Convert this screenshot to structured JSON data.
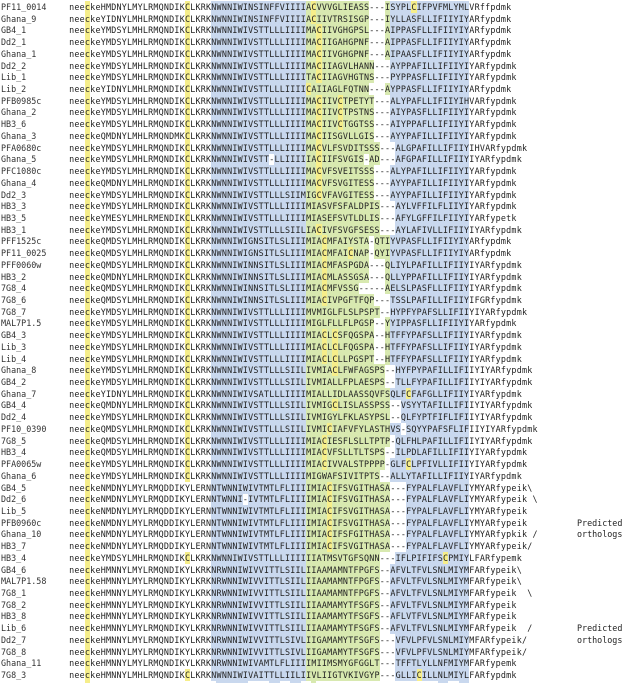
{
  "rows": [
    {
      "name": "PF11_0014",
      "seq": "neeckeHMDNYLMYLRMQNDIKCLKRKNWNNIWINSINFFVIIIIACVVVGLIEASS---ISYPLCIFPVFMLYMLVRffpdmk"
    },
    {
      "name": "Ghana_9",
      "seq": "neeckeYIDNYLMHLRMQNDIKCLKRKNWNNIWINSINFFVIIIIACIIVTRSISGP---IYLLASFLLIFIIYIYARfypdmk"
    },
    {
      "name": "GB4_1",
      "seq": "neeckeYMDSYLMHLRMQNDIKCLKRKNWNNIWIVSTTLLLIIIIMACIIVGHGPSL---AIPPASFLLIFIIYIYARfypdmk"
    },
    {
      "name": "Dd2_1",
      "seq": "neeckeYMDSYLMHLRMQNDIKCLKRKNWNNIWIVSTTLLLIIIIMACIIGAHGPNF---AIPPASFLLIFIIYIYARfypdmk"
    },
    {
      "name": "Ghana_1",
      "seq": "neeckeYMDSYLMHLRMQNDIKCLKRKNWNNIWIVSTTLLLIIIIMACIIVGHGPNF---AIPAASFLLIFIIYIYARfypdmk"
    },
    {
      "name": "Dd2_2",
      "seq": "neeckeYMDSYLMHLRMQNDIKCLKRKNWNNIWIVSTTLLLIIIIMACIIAGVLHANN---AYPPAFILLIFIIYIYARfypdmk"
    },
    {
      "name": "Lib_1",
      "seq": "neeckeYMDSYLMHLRMQNDIKCLKRKNWNNIWIVSTTLLLIIIITACIIAGVHGTNS---PYPPASFLLIFIIYIYARfypdmk"
    },
    {
      "name": "Lib_2",
      "seq": "neeckeYIDNYLMHLRMQNDIKCLKRKNWNNIWIVSTTLLLIIIICAIIAGLFQTNN---AYPPASFLLIFIIYIYARfypdmk"
    },
    {
      "name": "PFB0985c",
      "seq": "neeckeYMDSYLMHLRMQNDIKCLKRKNWNNIWIVSTTLLLIIIIMACIIVCTPETYT---ALYPAFLLIFIIYIHVARfypdmk"
    },
    {
      "name": "Ghana_2",
      "seq": "neeckeYMDSYLMHLRMQNDIKCLKRKNWNNIWIVSTTLLLIIIIMACIIVCTPSTNS---AIYPASFLLIFIIYIYARfypdmk"
    },
    {
      "name": "HB3_6",
      "seq": "neeckeYMDSYLMHLRMQNDIKCLKRKNWNNIWIVSTTLLLIIIIMACIIVCTGGTSS---AIYPPAFLLIFIIYIYARfypdmk"
    },
    {
      "name": "Ghana_3",
      "seq": "neeckeQMDNYLMHLRMQNDMKCLKRKNWNNIWIVSTTLLLIIIIMACIISGVLLGIS---AYYPAFILLIFIIYIYARfypdmk"
    },
    {
      "name": "PFA0680c",
      "seq": "neeckeYMDSYLMHLRMQNDIKCLKRKNWNNIWIVSTTLLLIIIIMACVLFSVDITSSS---ALGPAFILLIFIIYIHVARfypdmk"
    },
    {
      "name": "Ghana_5",
      "seq": "neeckeYMDSYLMHLRMQNDIKCLKRKNWNNIWIVSTT-LLIIIIIACIIFSVGIS-AD---AFGPAFILLIFIIYIYARfypdmk"
    },
    {
      "name": "PFC1080c",
      "seq": "neeckeYMDSYLMHLRMQNDIKCLKRKNWNNIWIVSTTLLLIIIIMACVFSVEITSSS---ALYPAFILLIFIIYIYARfypdmk"
    },
    {
      "name": "Ghana_4",
      "seq": "neeckeQMDNYLMHLRMQNDIKCLKRKNWNNIWIVSTTLLLIIIIMACVFSVGITESS---AYYPAFILLIFIIYIYARfypdmk"
    },
    {
      "name": "Dd2_3",
      "seq": "neeckeYMDSYLMHLRMQNDIKCLKRKNWNNIWIVSTTLLLSIIMIGCVFAVGITESS---AYYPAFILLIFIIYIYARfypdmk"
    },
    {
      "name": "HB3_3",
      "seq": "neeckeYMDSYLMHLRMQNDIKCLKRKNWNNIWIVSTTLLLIIIIMIASVFSFALDPIS---AYLVFFILFLIIYIYARfypdmk"
    },
    {
      "name": "HB3_5",
      "seq": "neeckeYMESYLMHLRMENDIKCLKRKNWNNIWIVSTTLLLIIIIMIASEFSVTLDLIS---AFYLGFFILFIIYIYARfypetk"
    },
    {
      "name": "HB3_1",
      "seq": "neeckeYMDSYLMHLRMQNDIKCLKRKNWNNIWIVSTTLLLSIILIACIVFSVGFSESS---AYLAFIVLLIFIIYIYARfypdmk"
    },
    {
      "name": "PFF1525c",
      "seq": "neeckeQMDSYLMHLRMQNDIKCLKRKNWNNIWIGNSITLSLIIIMIACMFAIYSTA-QTIYVPASFLLIFIIYIYARfypdmk"
    },
    {
      "name": "PF11_0025",
      "seq": "neeckeQMDSYLMHLRMQNDIKCLKRKNWNNIWIGNSITLSLIIIMIACMFAICNAP-QYIYVPASFLLIFIIYIYARfypdmk"
    },
    {
      "name": "PFF0060w",
      "seq": "neeckeQMDSYLMHLRMQNDIKCLKRKNWNNIWINNSITLSLIIIMIACMFASPGDA---QLIYLPAFILLIFIIYIYARfypdmk"
    },
    {
      "name": "HB3_2",
      "seq": "neeckeQMDNYLMHLRMQNDIKCLKRKNWNNIWINNSITLSLIIIMIACMLASSGSA---QLLYPPAFILLIFIIYIYARfypdmk"
    },
    {
      "name": "7G8_4",
      "seq": "neeckeQMDSYLMHLRMQNDIKCLKRKNWNNIWINNSITLSLIIIMIACMFVSSG-----AELSLPASFLLIFIIYIYARfypdmk"
    },
    {
      "name": "7G8_6",
      "seq": "neeckeQMDSYLMHLRMQNDIKCLKRKNWNNIWINNSITLSLIIIMIACIVPGFTFQP---TSSLPAFILLIFIIYIFGRfypdmk"
    },
    {
      "name": "7G8_7",
      "seq": "neeckeYMDSYLMHLRMQNDIKCLKRKNWNNIWIVSTTLLLIIIIMVMIGLFLSLPSPT--HYPFYPAFSLLIFIIYIYARfypdmk"
    },
    {
      "name": "MAL7P1.5",
      "seq": "neeckeYMDSYLMHLRMQNDIKCLKRKNWNNIWIVSTTLLLIIIIMIGLFLLFLPGSP--YYIPPASFLLIFIIYIYARfypdmk"
    },
    {
      "name": "GB4_3",
      "seq": "neeckeYMDSYLMHLRMQNDIKCLKRKNWNNIWIVSTTLLLIIIIMIACLCSFQGSPA--HTFFYPAFSLLIFIIYIYARfypdmk"
    },
    {
      "name": "Lib_3",
      "seq": "neeckeYMDSYLMHLRMQNDIKCLKRKNWNNIWIVSTTLLLIIIIMIACLCLFQGSPA--HTFFYPAFSLLIFIIYIYARfypdmk"
    },
    {
      "name": "Lib_4",
      "seq": "neeckeYMDSYLMHLRMQNDIKCLKRKNWNNIWIVSTTLLLIIIIMIACLCLLPGSPT--HTFFYPAFSLLIFIIYIYARfypdmk"
    },
    {
      "name": "Ghana_8",
      "seq": "neeckeYMDSYLMHLRMQNDIKCLKRKNWNNIWIVSTTLLLSIILIVMIACLFWFAGSPS--HYFPYPAFILLIFIIYIYARfypdmk"
    },
    {
      "name": "GB4_2",
      "seq": "neeckeYMDSYLMHLRMQNDIKCLKRKNWNNIWIVSTTLLLSIILIVMIALLFPLAESPS--TLLFYPAFILLIFIIYIYARfypdmk"
    },
    {
      "name": "Ghana_7",
      "seq": "neeckeYIDNYLMHLRMQNDIKCLKRKNWNNIWIVSATLLLIIIIMIALLIDLAASSQVFSQLFCFAFGLLIFIIYIYARfypdmk"
    },
    {
      "name": "GB4_4",
      "seq": "neeckeQMDNYLMHLRMQNDIKCLKRKNWNNIWIVSTTLLLSIILIVMIGCLISLASSPSS--VSYYTAFILLIFIIYIYARfypdmk"
    },
    {
      "name": "Dd2_4",
      "seq": "neeckeYMDSYLMHLRMQNDIKCLKRKNWNNIWIVSTTLLLSIILIVMIGYLFKLASYPSL--QLFYPTFIFLIFIIYIYARfypdmk"
    },
    {
      "name": "PF10_0390",
      "seq": "neeckeQMDSYLMHLRMQNDIKCLKRKNWNNIWIVSTTLLLSIILIVMICIAFVFYLASTHVS-SQYYPAFSFLIFIIYIYARfypdmk"
    },
    {
      "name": "7G8_5",
      "seq": "neeckeQMDSYLMHLRMQNDIKCLKRKNWNNIWIVSTTLLLIIIIMIACIESFLSLLTPTP-QLFHLPAFILLIFIIYIYARfypdmk"
    },
    {
      "name": "HB3_4",
      "seq": "neeckeQMDSYLMHLRMQNDIKCLKRKNWNNIWIVSTTLLLIIIIMIACVFSLLTLTSPS--ILPDLAFILLIFIIYIYARfypdmk"
    },
    {
      "name": "PFA0065w",
      "seq": "neeckeYMDSYLMHLRMQNDIKCLKRKNWNNIWIVSTTLLLIIIIMIACIVVALSTPPPP-GLFCLPFIVLLIFIIYIYARfypdmk"
    },
    {
      "name": "Ghana_6",
      "seq": "neeckeYMDSYLMHLRMQNDIKCLKRKNWNNIWIVSTTLLLIIIIMIGWAFSIVITPTS--ALLYTAFILLIFIIYIYARfypdmk"
    },
    {
      "name": "GB4_5",
      "seq": "neeckeNMDNYLMYLRMQDDIKYLERNNTWNNIWIVTMTLFLIIIIMIACIFSVGITHASA---FYPALFLAVFLIYMYARfypeik\\"
    },
    {
      "name": "Dd2_6",
      "seq": "neeckeNMDNYLMYLRMQDDIKYLERNNTWNNI-IVTMTLFLIIIIMIACIFSVGITHASA---FYPALFLAVFLIYMYARfypeik \\"
    },
    {
      "name": "Lib_5",
      "seq": "neeckeNMDNYLMYLRMQDDIKYLERNNTWNNIWIVTMTLFLIIIIMIACIFSVGITHASA---FYPALFLAVFLIYMYARfypeik"
    },
    {
      "name": "PFB0960c",
      "seq": "neeckeNMDNYLMYLRMQDDIKYLERNNTWNNIWIVTMTLFLIIIIMIACIFSVGITHASA---FYPALFLAVFLIYMYARfypeik"
    },
    {
      "name": "Ghana_10",
      "seq": "neeckeNMDNYLMYLRMQDDIKYLERNNTWNNIWIVTMTLFLIIIIMIACIFSFGITHASA---FYPALFLAVFLIYMYARfypkik /"
    },
    {
      "name": "HB3_7",
      "seq": "neeckeNMDNYLMYLRMQDDIKYLERNNTWNNIWIVTMTLFLIIIIMIACIFSVGITHASA---FYPALFLAVFLIYMYARfypeik/"
    },
    {
      "name": "HB3_4",
      "seq": "neeckeYMDSYLMHLRMQNDIKCLKRKNWNNIWIVSTTLLLIIIIIIATMSVTGFSQNN---IFLPIFIFSCPMIYLFARfypemk"
    },
    {
      "name": "GB4_6",
      "seq": "neeckeHMNNYLMYLRMQNDIKYLKRKNRWNNIWIVVITTLSIILIIAAMAMNTFPGFS--AFVLTFVLSNLMIYMFARfypeik\\"
    },
    {
      "name": "MAL7P1.58",
      "seq": "neeckeHMNNYLMYLRMQNDIKYLKRKNRWNNIWIVVITTLSIILIIAAMAMNTFPGFS--AFVLTFVLSNLMIYMFARfypeik\\"
    },
    {
      "name": "7G8_1",
      "seq": "neeckeHMNNYLMYLRMQNDIKYLKRKNRWNNIWIVVITTLSIILIIAAMAMNTFPGFS--AFVLTFVLSNLMIYMFARfypeik  \\"
    },
    {
      "name": "7G8_2",
      "seq": "neeckeHMNNYLMYLRMQNDIKYLKRKNRWNNIWIVVITTLSIILIIAAMAMYTFSGFS--AFVLTFVLSNLMIYMFARfypeik"
    },
    {
      "name": "HB3_8",
      "seq": "neeckeHMNNYLMYLRMQNDIKYLKRKNRWNNIWIVVITTLSIILIIAAMAMYTFSGFS--AFLVTFVLSNLMIYMFARfypeik"
    },
    {
      "name": "Lib_6",
      "seq": "neeckeHMNNYLMYLRMQNDIKYLKRKNRWNNIWIVVITTLSIILIIAAMAMYTFSGFS--AFVLTFVLSNLMIYMFARfypeik  /"
    },
    {
      "name": "Dd2_7",
      "seq": "neeckeHMNNYLMYLRMQNDIKYLKRKNRWNNIWIVVITTLSIVLIIGAMAMYTFSGFS---VFVLPFVLSNLMIYMFARfypeik/"
    },
    {
      "name": "7G8_8",
      "seq": "neeckeHMNNYLMYLRMQNDIKYLKRKNRWNNIWIVVITTLSIVLIIGAMAMYTFSGFS---VFVLPFVLSNLMIYMFARfypeik/"
    },
    {
      "name": "Ghana_11",
      "seq": "neeckeHMNNYLMYLRMQNDIKYLKRKNRWNNIWIVAMTLFLIIIIMIIMSMYGFGGLT---TFFTLYLLNFMIYMFARfypemk"
    },
    {
      "name": "7G8_3",
      "seq": "neeckeHMNNYLMHLRMQNDIKCLKRKNWNNIWIVAITTLLIILIIVLIIGTVKIVGYP---GLLICILLNLMIYLFARfypdmk"
    },
    {
      "name": "cons/85%",
      "seq": "neeckeM..YLMHLRMQN.IK.LKRKN.WNNIWI....TL..II..I.......................IY..AR..P..K"
    }
  ],
  "annotations": [
    {
      "text": "Predicted",
      "row": 44
    },
    {
      "text": "orthologs",
      "row": 45
    },
    {
      "text": "Predicted",
      "row": 53
    },
    {
      "text": "orthologs",
      "row": 54
    }
  ],
  "colors": {
    "yellow": "#f6ee8a",
    "blue": "#c9d8ee",
    "green": "#d8e9b0"
  }
}
